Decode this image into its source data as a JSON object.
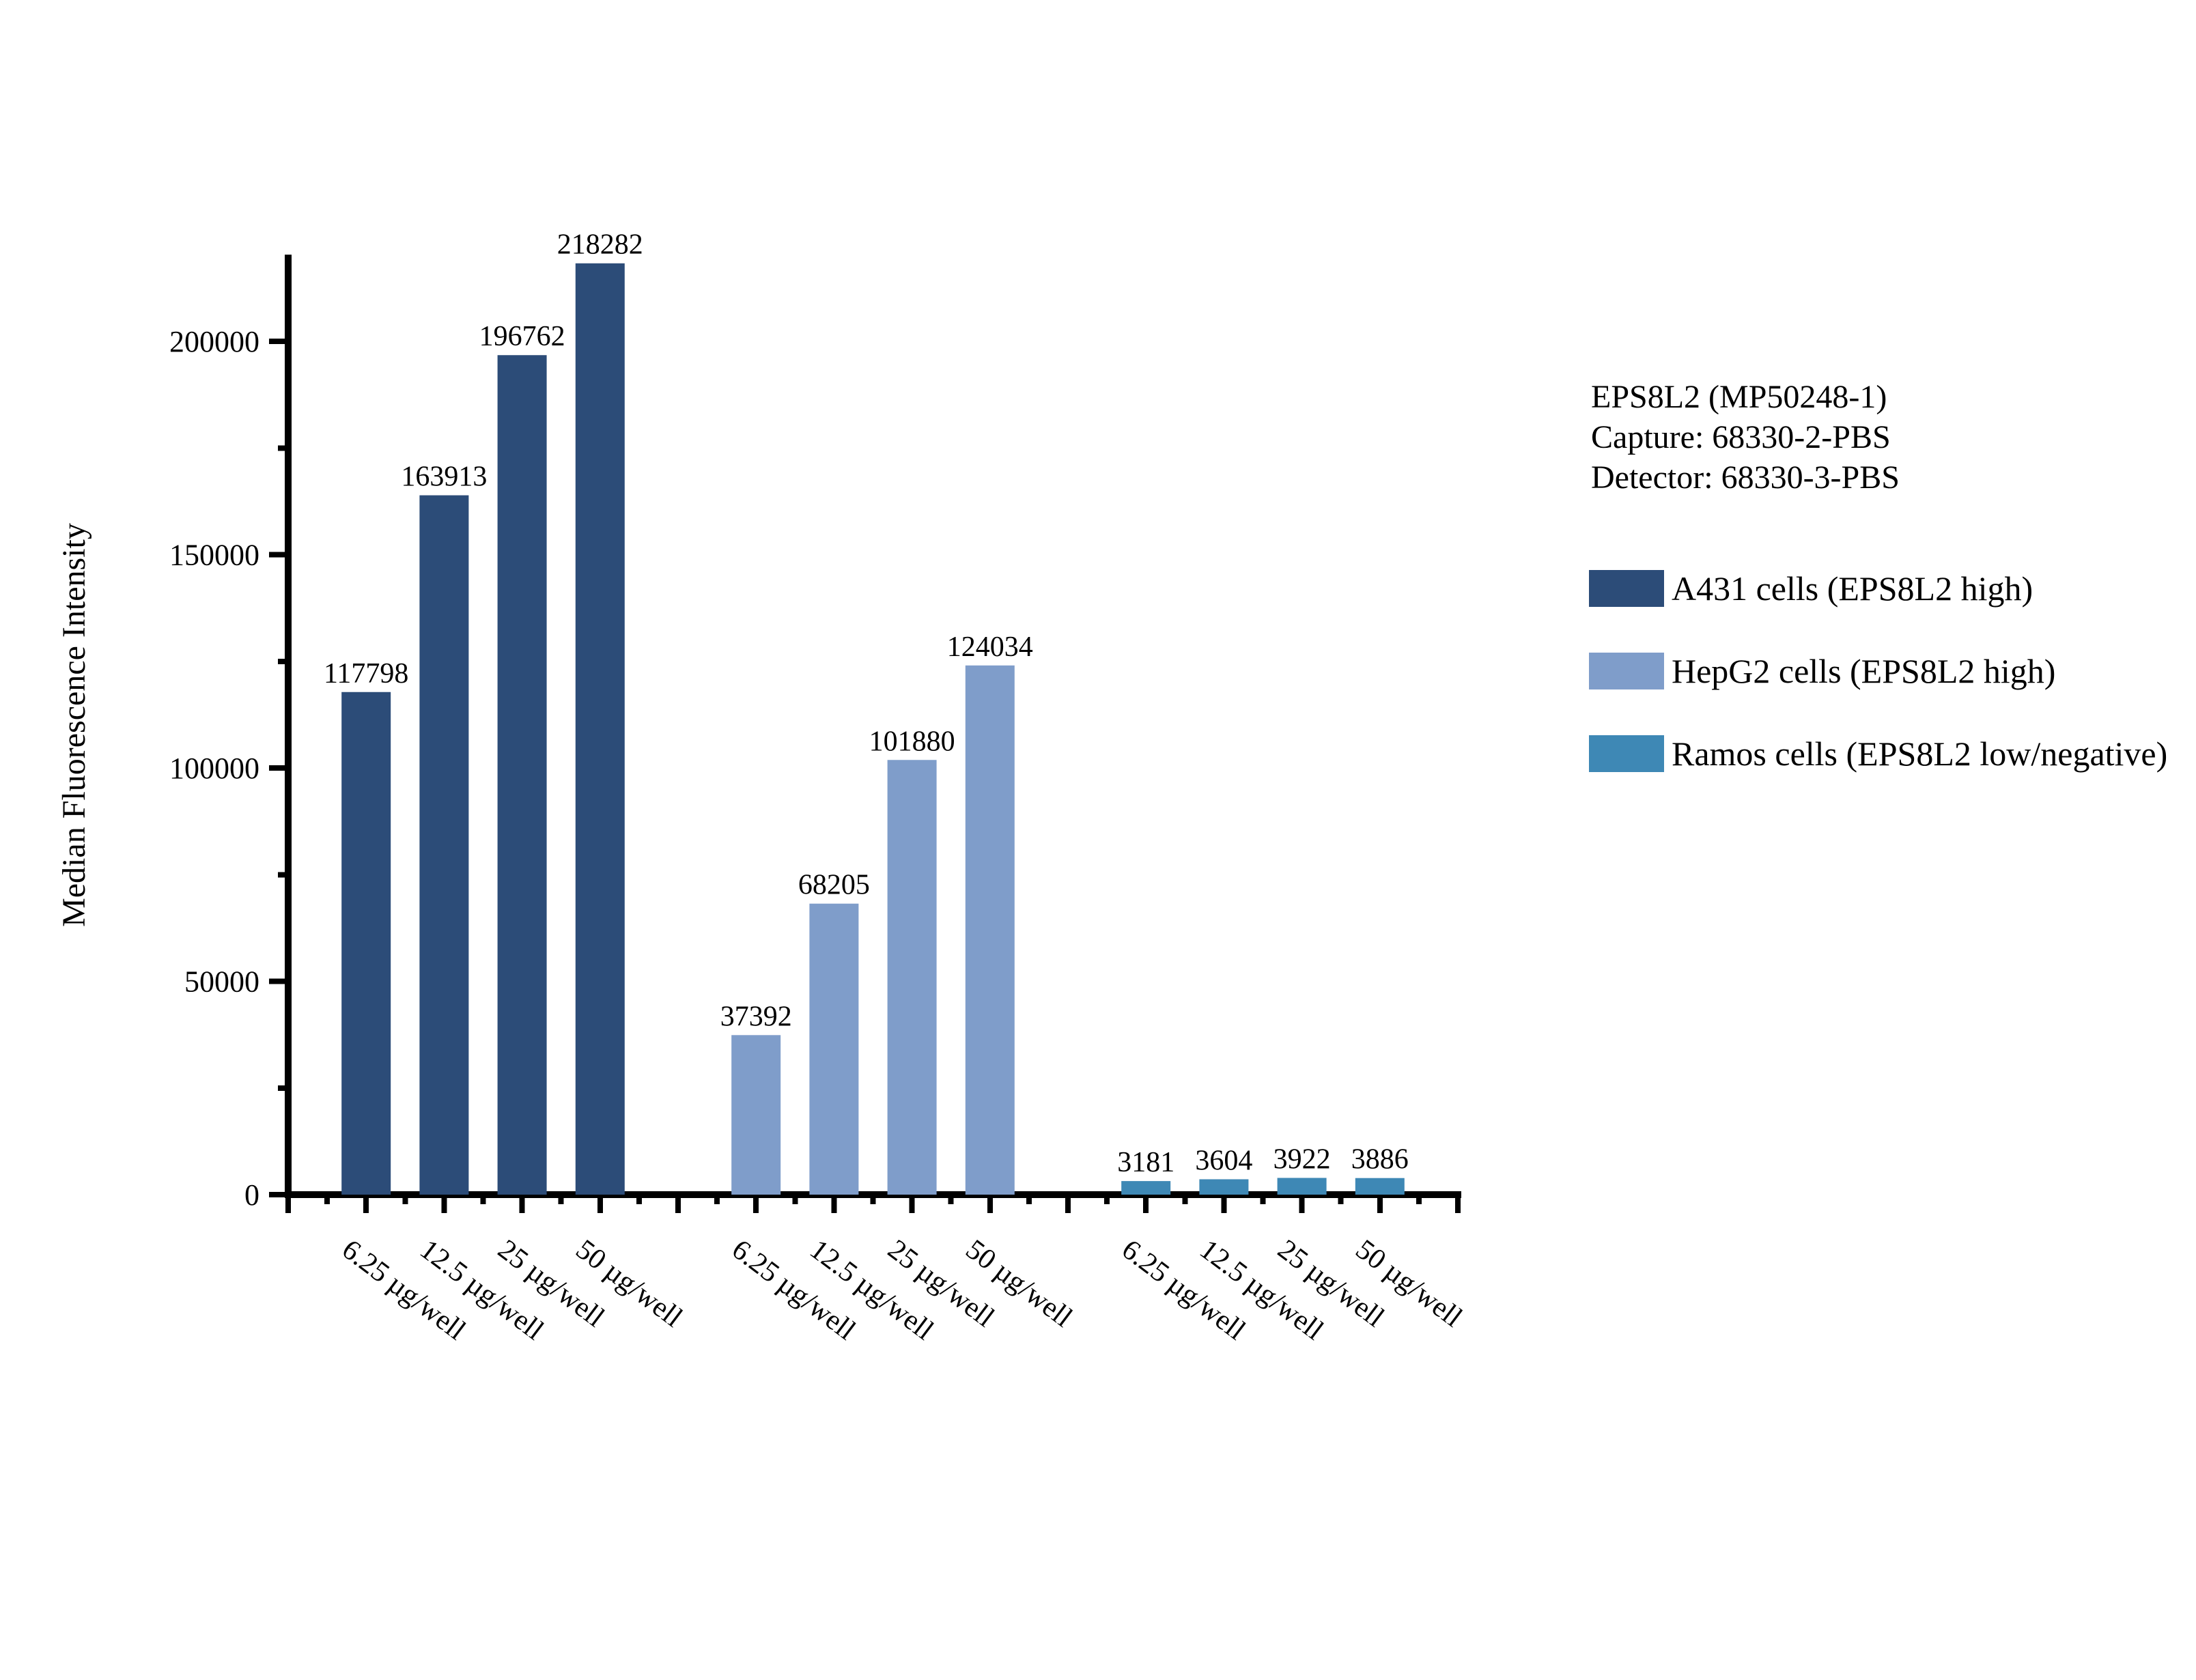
{
  "chart_data": {
    "type": "bar",
    "title": "",
    "xlabel": "",
    "ylabel": "Median Fluorescence Intensity",
    "ylim": [
      0,
      220000
    ],
    "y_major_ticks": [
      0,
      50000,
      100000,
      150000,
      200000
    ],
    "y_minor_step": 25000,
    "grid": false,
    "bar_value_labels": true,
    "legend_position": "right",
    "categories": [
      "6.25 µg/well",
      "12.5 µg/well",
      "25 µg/well",
      "50 µg/well"
    ],
    "series": [
      {
        "name": "A431 cells (EPS8L2 high)",
        "color": "#2C4C78",
        "values": [
          117798,
          163913,
          196762,
          218282
        ]
      },
      {
        "name": "HepG2 cells (EPS8L2 high)",
        "color": "#7F9DCA",
        "values": [
          37392,
          68205,
          101880,
          124034
        ]
      },
      {
        "name": "Ramos cells (EPS8L2 low/negative)",
        "color": "#3E88B5",
        "values": [
          3181,
          3604,
          3922,
          3886
        ]
      }
    ]
  },
  "annotation": {
    "lines": [
      "EPS8L2 (MP50248-1)",
      "Capture: 68330-2-PBS",
      "Detector: 68330-3-PBS"
    ]
  },
  "legend": {
    "entries": [
      {
        "label": "A431 cells (EPS8L2 high)",
        "color": "#2C4C78"
      },
      {
        "label": "HepG2 cells (EPS8L2 high)",
        "color": "#7F9DCA"
      },
      {
        "label": "Ramos cells (EPS8L2 low/negative)",
        "color": "#3E88B5"
      }
    ]
  }
}
